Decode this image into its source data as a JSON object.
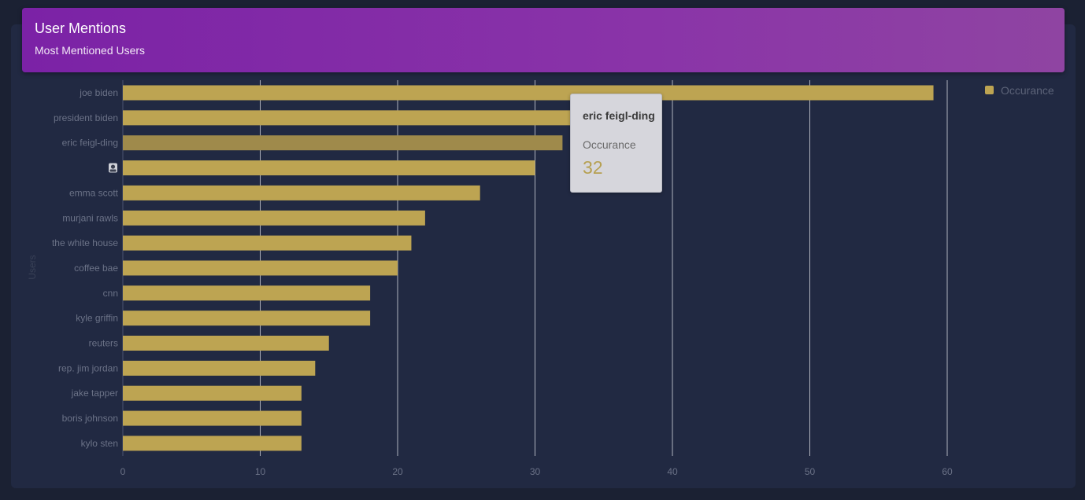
{
  "card": {
    "title": "User Mentions",
    "subtitle": "Most Mentioned Users"
  },
  "tooltip": {
    "title": "eric feigl-ding",
    "label": "Occurance",
    "value": "32"
  },
  "legend": {
    "label": "Occurance"
  },
  "colors": {
    "bar": "#bda452",
    "bar_hover": "#9f8a4b",
    "grid": "#c8cbd3",
    "tick_label": "#6b7287",
    "axis_title": "#394157",
    "background": "#212942",
    "header_start": "#7b22a6",
    "header_end": "#8f44a2"
  },
  "chart_data": {
    "type": "bar",
    "orientation": "horizontal",
    "categories": [
      "joe biden",
      "president biden",
      "eric feigl-ding",
      "",
      "emma scott",
      "murjani rawls",
      "the white house",
      "coffee bae",
      "cnn",
      "kyle griffin",
      "reuters",
      "rep. jim jordan",
      "jake tapper",
      "boris johnson",
      "kylo sten"
    ],
    "category_icons": [
      "",
      "",
      "",
      "avatar-icon",
      "",
      "",
      "",
      "",
      "",
      "",
      "",
      "",
      "",
      "",
      ""
    ],
    "series": [
      {
        "name": "Occurance",
        "values": [
          59,
          33,
          32,
          30,
          26,
          22,
          21,
          20,
          18,
          18,
          15,
          14,
          13,
          13,
          13
        ]
      }
    ],
    "highlighted_index": 2,
    "xlim": [
      0,
      60
    ],
    "xticks": [
      0,
      10,
      20,
      30,
      40,
      50,
      60
    ],
    "xlabel": "",
    "ylabel": "Users",
    "grid": true,
    "legend_position": "top-right"
  }
}
